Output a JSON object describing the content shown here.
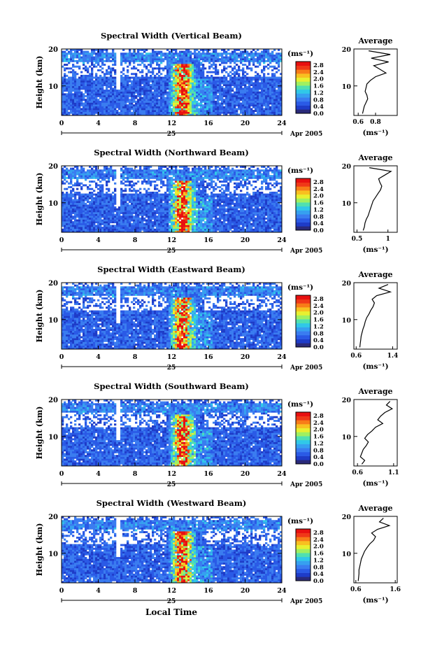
{
  "figure": {
    "xlabel": "Local Time",
    "time_unit_label": "(ms⁻¹)",
    "date_label": "Apr 2005",
    "day_label": "25",
    "average_title": "Average"
  },
  "chart_data": [
    {
      "type": "heatmap",
      "title": "Spectral Width (Vertical Beam)",
      "xlabel": "",
      "ylabel": "Height (km)",
      "xlim": [
        0,
        24
      ],
      "ylim": [
        2,
        20
      ],
      "x_ticks": [
        0,
        4,
        8,
        12,
        16,
        20,
        24
      ],
      "y_ticks": [
        10,
        20
      ],
      "colorbar": {
        "label": "(ms⁻¹)",
        "ticks": [
          "0.0",
          "0.4",
          "0.8",
          "1.2",
          "1.6",
          "2.0",
          "2.4",
          "2.8"
        ],
        "range": [
          0,
          3.0
        ]
      },
      "profile": {
        "title": "Average",
        "xlabel": "(ms⁻¹)",
        "xlim": [
          0.55,
          1.05
        ],
        "x_ticks": [
          0.6,
          0.8
        ],
        "heights": [
          2.5,
          3.5,
          4.5,
          5.5,
          6.5,
          7.5,
          8.5,
          9.5,
          10.5,
          11.5,
          12.5,
          13.5,
          14.5,
          15.5,
          16.5,
          17.5,
          18.5,
          19.5
        ],
        "values": [
          0.65,
          0.66,
          0.67,
          0.69,
          0.71,
          0.7,
          0.68,
          0.69,
          0.7,
          0.74,
          0.8,
          0.92,
          0.85,
          0.78,
          0.95,
          0.75,
          0.97,
          0.72
        ]
      }
    },
    {
      "type": "heatmap",
      "title": "Spectral Width (Northward Beam)",
      "xlabel": "",
      "ylabel": "Height (km)",
      "xlim": [
        0,
        24
      ],
      "ylim": [
        2,
        20
      ],
      "x_ticks": [
        0,
        4,
        8,
        12,
        16,
        20,
        24
      ],
      "y_ticks": [
        10,
        20
      ],
      "colorbar": {
        "label": "(ms⁻¹)",
        "ticks": [
          "0.0",
          "0.4",
          "0.8",
          "1.2",
          "1.6",
          "2.0",
          "2.4",
          "2.8"
        ],
        "range": [
          0,
          3.0
        ]
      },
      "profile": {
        "title": "Average",
        "xlabel": "(ms⁻¹)",
        "xlim": [
          0.45,
          1.15
        ],
        "x_ticks": [
          0.5,
          1.0
        ],
        "heights": [
          2.5,
          3.5,
          4.5,
          5.5,
          6.5,
          7.5,
          8.5,
          9.5,
          10.5,
          11.5,
          12.5,
          13.5,
          14.5,
          15.5,
          16.5,
          17.5,
          18.5,
          19.5
        ],
        "values": [
          0.6,
          0.62,
          0.63,
          0.65,
          0.68,
          0.7,
          0.72,
          0.74,
          0.76,
          0.8,
          0.84,
          0.88,
          0.9,
          0.87,
          0.85,
          0.95,
          1.05,
          0.7
        ]
      }
    },
    {
      "type": "heatmap",
      "title": "Spectral Width (Eastward Beam)",
      "xlabel": "",
      "ylabel": "Height (km)",
      "xlim": [
        0,
        24
      ],
      "ylim": [
        2,
        20
      ],
      "x_ticks": [
        0,
        4,
        8,
        12,
        16,
        20,
        24
      ],
      "y_ticks": [
        10,
        20
      ],
      "colorbar": {
        "label": "(ms⁻¹)",
        "ticks": [
          "0.0",
          "0.4",
          "0.8",
          "1.2",
          "1.6",
          "2.0",
          "2.4",
          "2.8"
        ],
        "range": [
          0,
          3.0
        ]
      },
      "profile": {
        "title": "Average",
        "xlabel": "(ms⁻¹)",
        "xlim": [
          0.55,
          1.5
        ],
        "x_ticks": [
          0.6,
          1.4
        ],
        "heights": [
          2.5,
          3.5,
          4.5,
          5.5,
          6.5,
          7.5,
          8.5,
          9.5,
          10.5,
          11.5,
          12.5,
          13.5,
          14.5,
          15.5,
          16.5,
          17.5,
          18.5,
          19.5
        ],
        "values": [
          0.68,
          0.69,
          0.7,
          0.71,
          0.73,
          0.75,
          0.78,
          0.8,
          0.83,
          0.88,
          0.92,
          0.97,
          1.0,
          0.95,
          1.05,
          1.35,
          1.1,
          1.3
        ]
      }
    },
    {
      "type": "heatmap",
      "title": "Spectral Width (Southward Beam)",
      "xlabel": "",
      "ylabel": "Height (km)",
      "xlim": [
        0,
        24
      ],
      "ylim": [
        2,
        20
      ],
      "x_ticks": [
        0,
        4,
        8,
        12,
        16,
        20,
        24
      ],
      "y_ticks": [
        10,
        20
      ],
      "colorbar": {
        "label": "(ms⁻¹)",
        "ticks": [
          "0.0",
          "0.4",
          "0.8",
          "1.2",
          "1.6",
          "2.0",
          "2.4",
          "2.8"
        ],
        "range": [
          0,
          3.0
        ]
      },
      "profile": {
        "title": "Average",
        "xlabel": "(ms⁻¹)",
        "xlim": [
          0.55,
          1.15
        ],
        "x_ticks": [
          0.6,
          1.1
        ],
        "heights": [
          2.5,
          3.5,
          4.5,
          5.5,
          6.5,
          7.5,
          8.5,
          9.5,
          10.5,
          11.5,
          12.5,
          13.5,
          14.5,
          15.5,
          16.5,
          17.5,
          18.5,
          19.5
        ],
        "values": [
          0.66,
          0.7,
          0.64,
          0.66,
          0.68,
          0.72,
          0.75,
          0.7,
          0.74,
          0.8,
          0.85,
          0.95,
          0.88,
          0.92,
          0.98,
          1.08,
          1.0,
          1.05
        ]
      }
    },
    {
      "type": "heatmap",
      "title": "Spectral Width (Westward Beam)",
      "xlabel": "Local Time",
      "ylabel": "Height (km)",
      "xlim": [
        0,
        24
      ],
      "ylim": [
        2,
        20
      ],
      "x_ticks": [
        0,
        4,
        8,
        12,
        16,
        20,
        24
      ],
      "y_ticks": [
        10,
        20
      ],
      "colorbar": {
        "label": "(ms⁻¹)",
        "ticks": [
          "0.0",
          "0.4",
          "0.8",
          "1.2",
          "1.6",
          "2.0",
          "2.4",
          "2.8"
        ],
        "range": [
          0,
          3.0
        ]
      },
      "profile": {
        "title": "Average",
        "xlabel": "(ms⁻¹)",
        "xlim": [
          0.55,
          1.65
        ],
        "x_ticks": [
          0.6,
          1.6
        ],
        "heights": [
          2.5,
          3.5,
          4.5,
          5.5,
          6.5,
          7.5,
          8.5,
          9.5,
          10.5,
          11.5,
          12.5,
          13.5,
          14.5,
          15.5,
          16.5,
          17.5,
          18.5,
          19.5
        ],
        "values": [
          0.66,
          0.67,
          0.68,
          0.68,
          0.7,
          0.72,
          0.74,
          0.78,
          0.82,
          0.88,
          0.95,
          1.05,
          1.1,
          1.0,
          1.15,
          1.45,
          1.2,
          1.3
        ]
      }
    }
  ],
  "colors": {
    "scale": [
      "#2a2a7a",
      "#1e3cc8",
      "#2a5ae6",
      "#3a7cf0",
      "#36a0f0",
      "#30c8e8",
      "#50e0b0",
      "#a0f060",
      "#e8f030",
      "#f8c020",
      "#f87c18",
      "#f03818",
      "#e81010"
    ]
  }
}
